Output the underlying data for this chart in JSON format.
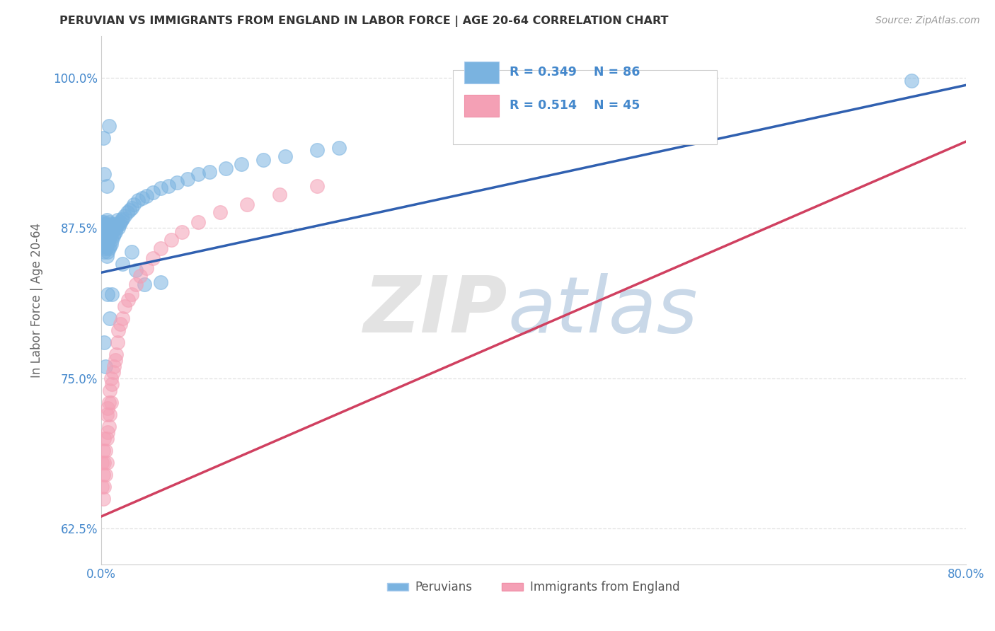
{
  "title": "PERUVIAN VS IMMIGRANTS FROM ENGLAND IN LABOR FORCE | AGE 20-64 CORRELATION CHART",
  "source": "Source: ZipAtlas.com",
  "ylabel": "In Labor Force | Age 20-64",
  "xmin": 0.0,
  "xmax": 0.8,
  "ymin": 0.595,
  "ymax": 1.035,
  "yticks": [
    0.625,
    0.75,
    0.875,
    1.0
  ],
  "ytick_labels": [
    "62.5%",
    "75.0%",
    "87.5%",
    "100.0%"
  ],
  "xticks": [
    0.0,
    0.1,
    0.2,
    0.3,
    0.4,
    0.5,
    0.6,
    0.7,
    0.8
  ],
  "xtick_labels": [
    "0.0%",
    "",
    "",
    "",
    "",
    "",
    "",
    "",
    "80.0%"
  ],
  "legend_r1": "R = 0.349",
  "legend_n1": "N = 86",
  "legend_r2": "R = 0.514",
  "legend_n2": "N = 45",
  "blue_color": "#7ab3e0",
  "pink_color": "#f4a0b5",
  "blue_line_color": "#3060b0",
  "pink_line_color": "#d04060",
  "blue_scatter_x": [
    0.001,
    0.001,
    0.001,
    0.002,
    0.002,
    0.002,
    0.002,
    0.003,
    0.003,
    0.003,
    0.003,
    0.003,
    0.004,
    0.004,
    0.004,
    0.004,
    0.005,
    0.005,
    0.005,
    0.005,
    0.005,
    0.006,
    0.006,
    0.006,
    0.006,
    0.007,
    0.007,
    0.007,
    0.007,
    0.008,
    0.008,
    0.008,
    0.009,
    0.009,
    0.009,
    0.01,
    0.01,
    0.011,
    0.011,
    0.012,
    0.012,
    0.013,
    0.014,
    0.015,
    0.015,
    0.016,
    0.017,
    0.018,
    0.019,
    0.02,
    0.022,
    0.024,
    0.026,
    0.028,
    0.03,
    0.034,
    0.038,
    0.042,
    0.048,
    0.055,
    0.062,
    0.07,
    0.08,
    0.09,
    0.1,
    0.115,
    0.13,
    0.15,
    0.17,
    0.2,
    0.22,
    0.055,
    0.04,
    0.032,
    0.028,
    0.02,
    0.01,
    0.007,
    0.005,
    0.003,
    0.002,
    0.003,
    0.004,
    0.006,
    0.008,
    0.75
  ],
  "blue_scatter_y": [
    0.87,
    0.875,
    0.88,
    0.86,
    0.865,
    0.87,
    0.878,
    0.855,
    0.862,
    0.868,
    0.875,
    0.88,
    0.858,
    0.865,
    0.872,
    0.878,
    0.852,
    0.86,
    0.868,
    0.875,
    0.882,
    0.855,
    0.862,
    0.87,
    0.877,
    0.858,
    0.865,
    0.872,
    0.88,
    0.86,
    0.868,
    0.875,
    0.862,
    0.87,
    0.878,
    0.865,
    0.872,
    0.868,
    0.875,
    0.87,
    0.878,
    0.872,
    0.875,
    0.878,
    0.882,
    0.875,
    0.878,
    0.88,
    0.882,
    0.883,
    0.885,
    0.888,
    0.89,
    0.892,
    0.895,
    0.898,
    0.9,
    0.902,
    0.905,
    0.908,
    0.91,
    0.913,
    0.916,
    0.92,
    0.922,
    0.925,
    0.928,
    0.932,
    0.935,
    0.94,
    0.942,
    0.83,
    0.828,
    0.84,
    0.855,
    0.845,
    0.82,
    0.96,
    0.91,
    0.92,
    0.95,
    0.78,
    0.76,
    0.82,
    0.8,
    0.998
  ],
  "pink_scatter_x": [
    0.001,
    0.001,
    0.002,
    0.002,
    0.002,
    0.003,
    0.003,
    0.003,
    0.004,
    0.004,
    0.005,
    0.005,
    0.005,
    0.006,
    0.006,
    0.007,
    0.007,
    0.008,
    0.008,
    0.009,
    0.009,
    0.01,
    0.011,
    0.012,
    0.013,
    0.014,
    0.015,
    0.016,
    0.018,
    0.02,
    0.022,
    0.025,
    0.028,
    0.032,
    0.036,
    0.042,
    0.048,
    0.055,
    0.065,
    0.075,
    0.09,
    0.11,
    0.135,
    0.165,
    0.2
  ],
  "pink_scatter_y": [
    0.66,
    0.68,
    0.65,
    0.67,
    0.69,
    0.66,
    0.68,
    0.7,
    0.67,
    0.69,
    0.68,
    0.7,
    0.72,
    0.705,
    0.725,
    0.71,
    0.73,
    0.72,
    0.74,
    0.73,
    0.75,
    0.745,
    0.755,
    0.76,
    0.765,
    0.77,
    0.78,
    0.79,
    0.795,
    0.8,
    0.81,
    0.815,
    0.82,
    0.828,
    0.835,
    0.842,
    0.85,
    0.858,
    0.865,
    0.872,
    0.88,
    0.888,
    0.895,
    0.903,
    0.91
  ],
  "grid_color": "#dddddd",
  "background_color": "#ffffff",
  "title_color": "#333333",
  "axis_label_color": "#4488cc",
  "tick_color": "#4488cc"
}
